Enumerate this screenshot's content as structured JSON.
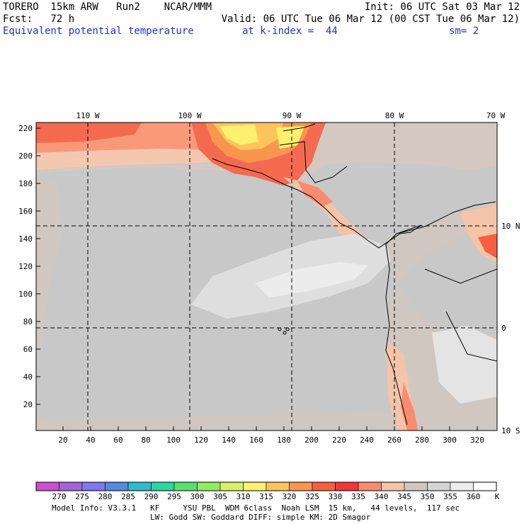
{
  "header": {
    "line1_left": "TORERO  15km ARW   Run2    NCAR/MMM",
    "line1_right": "Init: 06 UTC Sat 03 Mar 12",
    "line2_left": "Fcst:   72 h",
    "line2_right": "Valid: 06 UTC Tue 06 Mar 12 (00 CST Tue 06 Mar 12)",
    "line3_field": "Equivalent potential temperature",
    "line3_level": "at k-index =  44",
    "line3_sm": "sm= 2"
  },
  "map": {
    "lon_labels": [
      "110 W",
      "100 W",
      "90 W",
      "80 W",
      "70 W"
    ],
    "lat_labels": [
      "10 N",
      "0",
      "10 S"
    ],
    "y_ticks": [
      "220",
      "200",
      "180",
      "160",
      "140",
      "120",
      "100",
      "80",
      "60",
      "40",
      "20"
    ],
    "x_ticks": [
      "20",
      "40",
      "60",
      "80",
      "100",
      "120",
      "140",
      "160",
      "180",
      "200",
      "220",
      "240",
      "260",
      "280",
      "300",
      "320"
    ]
  },
  "colorbar": {
    "labels": [
      "270",
      "275",
      "280",
      "285",
      "290",
      "295",
      "300",
      "305",
      "310",
      "315",
      "320",
      "325",
      "330",
      "335",
      "340",
      "345",
      "350",
      "355",
      "360"
    ],
    "unit": "K",
    "colors": [
      "#c84fd0",
      "#a066d8",
      "#7f78e8",
      "#5a88e0",
      "#2fbcc8",
      "#2ad8a0",
      "#5ae070",
      "#90ec60",
      "#d8f068",
      "#fff070",
      "#fcc45a",
      "#f89650",
      "#f46040",
      "#f03838",
      "#f88c70",
      "#f4c4a8",
      "#d0c8c0",
      "#d4d4d4",
      "#ececec",
      "#ffffff"
    ]
  },
  "footer": {
    "line1": "Model Info: V3.3.1   KF     YSU PBL  WDM 6class  Noah LSM  15 km,   44 levels,  117 sec",
    "line2": "LW: Godd SW: Goddard DIFF: simple KM: 2D Smagor"
  }
}
